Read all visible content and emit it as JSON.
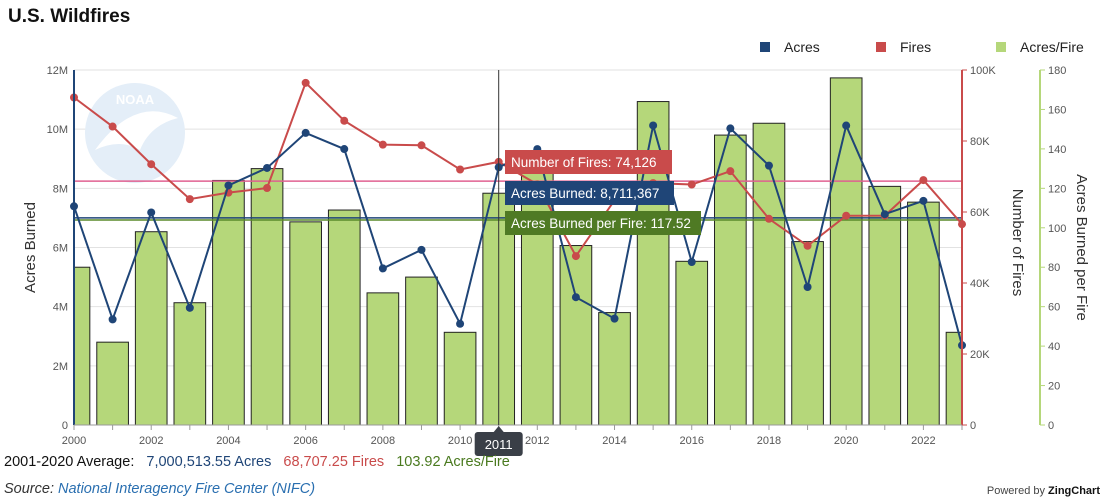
{
  "chart_data": {
    "type": "bar",
    "title": "U.S. Wildfires",
    "years": [
      2000,
      2001,
      2002,
      2003,
      2004,
      2005,
      2006,
      2007,
      2008,
      2009,
      2010,
      2011,
      2012,
      2013,
      2014,
      2015,
      2016,
      2017,
      2018,
      2019,
      2020,
      2021,
      2022,
      2023
    ],
    "x_tick_labels": [
      "2000",
      "2002",
      "2004",
      "2006",
      "2008",
      "2010",
      "2012",
      "2014",
      "2016",
      "2018",
      "2020",
      "2022"
    ],
    "series": [
      {
        "name": "Acres",
        "type": "line",
        "axis": "Acres Burned",
        "color": "#1f4577",
        "values": [
          7393493,
          3570911,
          7184712,
          3960842,
          8097880,
          8689389,
          9873745,
          9328045,
          5292468,
          5921786,
          3422724,
          8711367,
          9326238,
          4319546,
          3595613,
          10125149,
          5509995,
          10026086,
          8767492,
          4664364,
          10122336,
          7125643,
          7577183,
          2693910
        ]
      },
      {
        "name": "Fires",
        "type": "line",
        "axis": "Number of Fires",
        "color": "#c94b4b",
        "values": [
          92250,
          84079,
          73457,
          63629,
          65461,
          66753,
          96385,
          85705,
          78979,
          78792,
          71971,
          74126,
          67774,
          47579,
          63312,
          68151,
          67743,
          71499,
          58083,
          50477,
          58950,
          58985,
          68988,
          56580
        ]
      },
      {
        "name": "Acres/Fire",
        "type": "bar",
        "axis": "Acres Burned per Fire",
        "color": "#b5d77a",
        "values": [
          80,
          42,
          98,
          62,
          124,
          130,
          103,
          109,
          67,
          75,
          47,
          117.52,
          128,
          91,
          57,
          164,
          83,
          147,
          153,
          93,
          176,
          121,
          113,
          47
        ]
      }
    ],
    "axes": {
      "y_left": {
        "label": "Acres Burned",
        "min": 0,
        "max": 12000000,
        "ticks": [
          "0",
          "2M",
          "4M",
          "6M",
          "8M",
          "10M",
          "12M"
        ]
      },
      "y_right_1": {
        "label": "Number of Fires",
        "min": 0,
        "max": 100000,
        "ticks": [
          "0",
          "20K",
          "40K",
          "60K",
          "80K",
          "100K"
        ]
      },
      "y_right_2": {
        "label": "Acres Burned per Fire",
        "min": 0,
        "max": 180,
        "ticks": [
          "0",
          "20",
          "40",
          "60",
          "80",
          "100",
          "120",
          "140",
          "160",
          "180"
        ]
      }
    },
    "averages": {
      "acres": 7000513.55,
      "fires": 68707.25,
      "acres_per_fire": 103.92
    },
    "legend": {
      "position": "top-right",
      "items": [
        "Acres",
        "Fires",
        "Acres/Fire"
      ]
    },
    "tooltip": {
      "year": "2011",
      "fires": "Number of Fires: 74,126",
      "acres": "Acres Burned: 8,711,367",
      "acres_per_fire": "Acres Burned per Fire: 117.52"
    },
    "watermark": "NOAA"
  },
  "footer": {
    "avg_prefix": "2001-2020 Average:",
    "avg_acres": "7,000,513.55 Acres",
    "avg_fires": "68,707.25 Fires",
    "avg_apf": "103.92 Acres/Fire",
    "source_prefix": "Source:",
    "source_link": "National Interagency Fire Center (NIFC)",
    "powered_prefix": "Powered by",
    "powered_brand": "ZingChart"
  },
  "colors": {
    "acres": "#1f4577",
    "fires": "#c94b4b",
    "bars": "#b5d77a",
    "apf_text": "#4a7a1f",
    "avg_acres_line": "#1f4577",
    "avg_fires_line": "#e06090",
    "avg_apf_line": "#5a8a2a"
  }
}
